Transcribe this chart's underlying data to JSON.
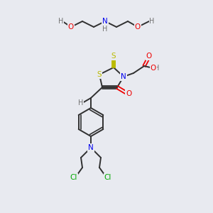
{
  "bg_color": "#e8eaf0",
  "atom_colors": {
    "C": "#303030",
    "H": "#707070",
    "N": "#0000ee",
    "O": "#ee0000",
    "S": "#bbbb00",
    "Cl": "#00aa00"
  },
  "bond_color": "#303030"
}
